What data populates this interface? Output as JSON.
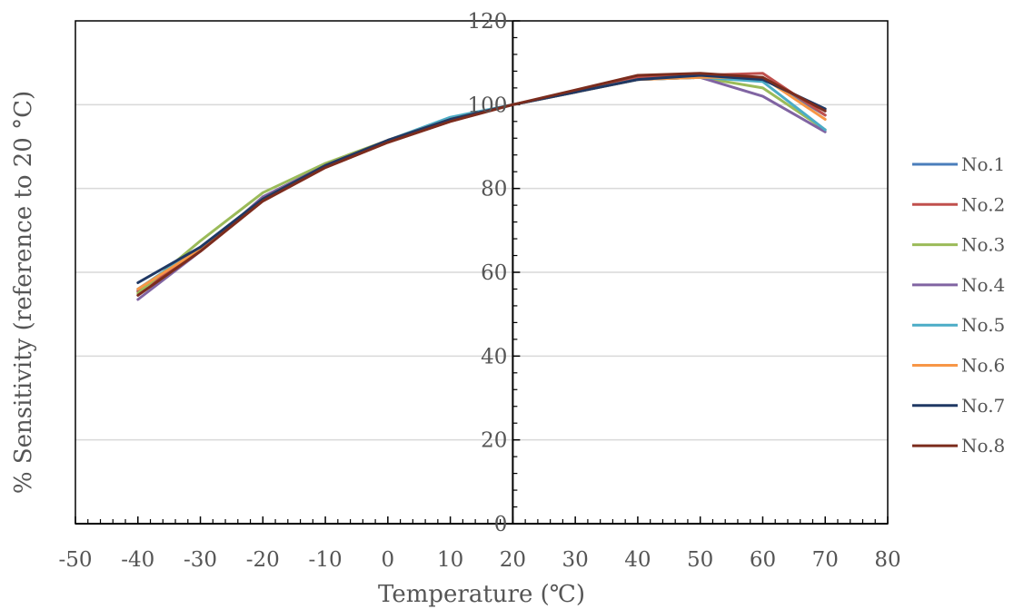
{
  "chart_data": {
    "type": "line",
    "xlabel": "Temperature (℃)",
    "ylabel": "% Sensitivity (reference to 20 °C)",
    "xlim": [
      -50,
      80
    ],
    "ylim": [
      0,
      120
    ],
    "x_ticks": [
      "-50",
      "-40",
      "-30",
      "-20",
      "-10",
      "0",
      "10",
      "20",
      "30",
      "40",
      "50",
      "60",
      "70",
      "80"
    ],
    "y_ticks": [
      "0",
      "20",
      "40",
      "60",
      "80",
      "100",
      "120"
    ],
    "grid": "horizontal",
    "legend_position": "right",
    "x": [
      -40,
      -30,
      -20,
      -10,
      0,
      10,
      20,
      30,
      40,
      50,
      60,
      70
    ],
    "series": [
      {
        "name": "No.1",
        "color": "#4a7ebb",
        "values": [
          55.5,
          65.5,
          77.5,
          85.5,
          91.5,
          96.5,
          100,
          103,
          106,
          106.5,
          106.5,
          97.5
        ]
      },
      {
        "name": "No.2",
        "color": "#c0504d",
        "values": [
          55.5,
          65,
          77,
          85,
          91,
          96,
          100,
          103,
          106.5,
          107,
          107.5,
          97.5
        ]
      },
      {
        "name": "No.3",
        "color": "#9bbb59",
        "values": [
          55,
          67.5,
          79,
          86,
          91.5,
          96.5,
          100,
          103,
          106,
          106.5,
          104,
          94
        ]
      },
      {
        "name": "No.4",
        "color": "#8064a2",
        "values": [
          53.5,
          65,
          78,
          85.5,
          91.5,
          96.5,
          100,
          103,
          106,
          106.5,
          102,
          93.5
        ]
      },
      {
        "name": "No.5",
        "color": "#4bacc6",
        "values": [
          56,
          66,
          77.5,
          85.5,
          91.5,
          97,
          100,
          103,
          106,
          106.5,
          105.5,
          94
        ]
      },
      {
        "name": "No.6",
        "color": "#f79646",
        "values": [
          56,
          65.5,
          77.5,
          85.5,
          91.5,
          96.5,
          100,
          103,
          106,
          106.5,
          106.5,
          96.5
        ]
      },
      {
        "name": "No.7",
        "color": "#1f3864",
        "values": [
          57.5,
          66,
          77.5,
          85.5,
          91.5,
          96.5,
          100,
          103,
          106,
          107,
          106,
          99
        ]
      },
      {
        "name": "No.8",
        "color": "#7b2c1d",
        "values": [
          54.5,
          65,
          77,
          85,
          91,
          96,
          100,
          103.5,
          107,
          107.5,
          106.5,
          98.5
        ]
      }
    ]
  }
}
